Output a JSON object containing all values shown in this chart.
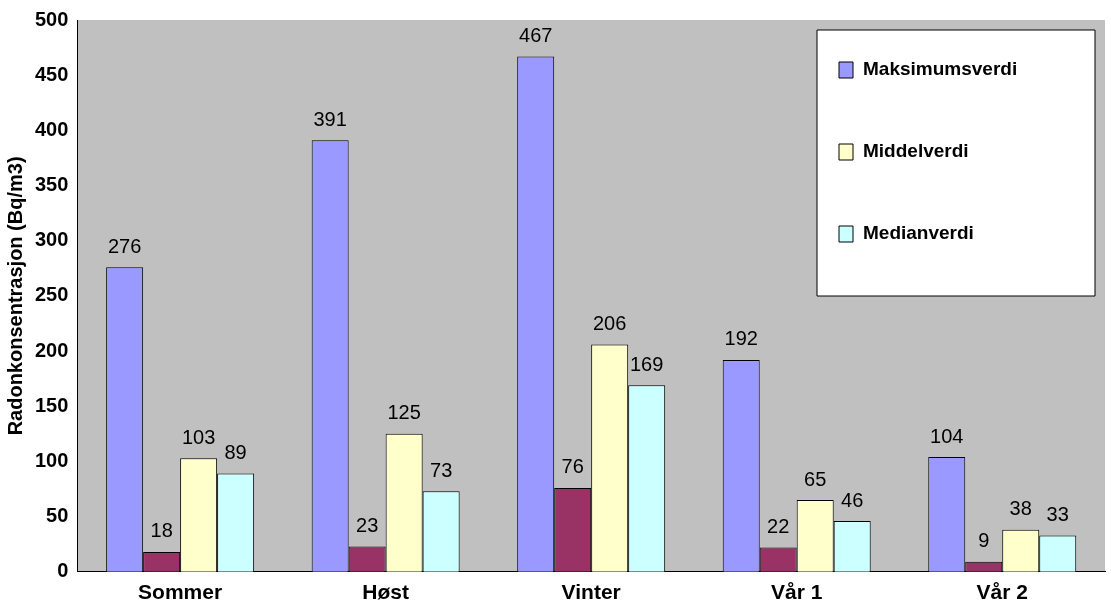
{
  "chart_data": {
    "type": "bar",
    "ylabel": "Radonkonsentrasjon (Bq/m3)",
    "categories": [
      "Sommer",
      "Høst",
      "Vinter",
      "Vår 1",
      "Vår 2"
    ],
    "series": [
      {
        "name": "Maksimumsverdi",
        "color": "#9999ff",
        "values": [
          276,
          391,
          467,
          192,
          104
        ]
      },
      {
        "color": "#993366",
        "values": [
          18,
          23,
          76,
          22,
          9
        ]
      },
      {
        "name": "Middelverdi",
        "color": "#ffffcc",
        "values": [
          103,
          125,
          206,
          65,
          38
        ]
      },
      {
        "name": "Medianverdi",
        "color": "#ccffff",
        "values": [
          89,
          73,
          169,
          46,
          33
        ]
      }
    ],
    "ylim": [
      0,
      500
    ],
    "yticks": [
      0,
      50,
      100,
      150,
      200,
      250,
      300,
      350,
      400,
      450,
      500
    ],
    "grid": false,
    "legend": "top right",
    "data_labels": true
  }
}
